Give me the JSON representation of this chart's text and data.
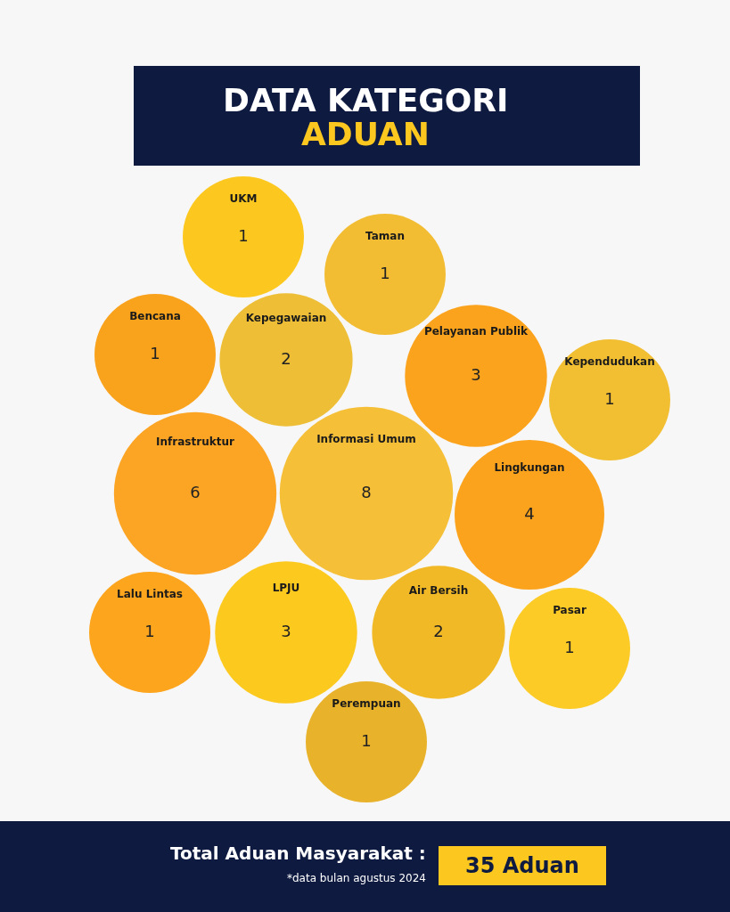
{
  "chart_data": {
    "type": "other",
    "title": "DATA KATEGORI",
    "subtitle": "ADUAN",
    "categories": [
      "Taman",
      "Pelayanan Publik",
      "LPJU",
      "Kepegawaian",
      "Bencana",
      "Lalu Lintas",
      "Informasi Umum",
      "Infrastruktur",
      "Pasar",
      "Perempuan",
      "Air Bersih",
      "Lingkungan",
      "Kependudukan",
      "UKM"
    ],
    "values": [
      1,
      3,
      3,
      2,
      1,
      1,
      8,
      6,
      1,
      1,
      2,
      4,
      1,
      1
    ],
    "colors": [
      "#f3bd33",
      "#fba31c",
      "#fcc91f",
      "#eebf36",
      "#f9a21c",
      "#fca51d",
      "#f5bf38",
      "#fca424",
      "#fccb25",
      "#e8b22a",
      "#f2b927",
      "#fba31c",
      "#f2bf33",
      "#fcc820"
    ],
    "data_labels": true,
    "annotations": [
      "Total Aduan Masyarakat :",
      "35 Aduan",
      "*data bulan agustus 2024"
    ]
  }
}
